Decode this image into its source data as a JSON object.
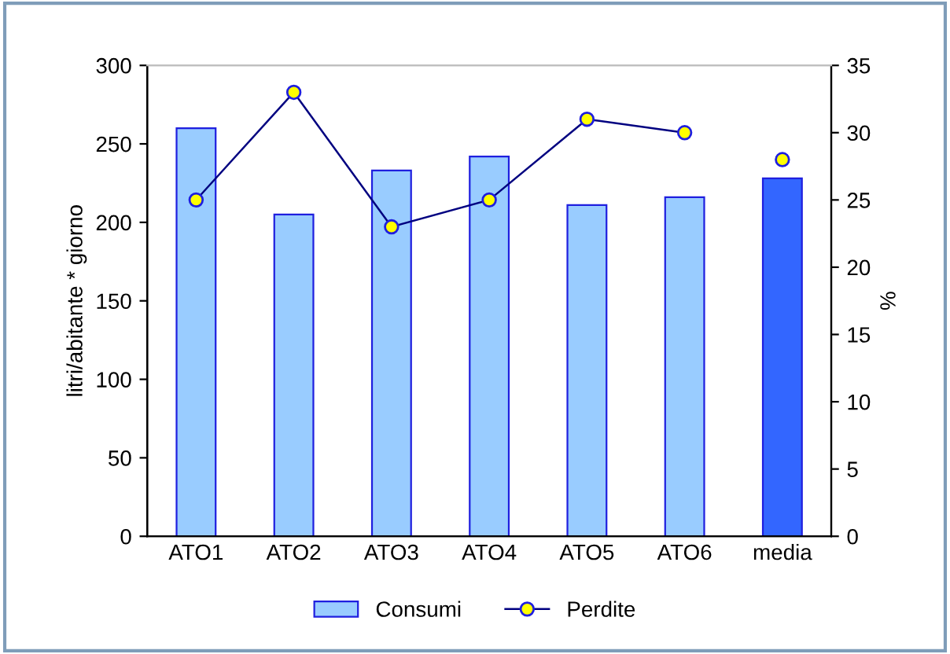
{
  "chart_data": {
    "type": "bar",
    "categories": [
      "ATO1",
      "ATO2",
      "ATO3",
      "ATO4",
      "ATO5",
      "ATO6",
      "media"
    ],
    "ylabel": "litri/abitante * giorno",
    "y2label": "%",
    "series": [
      {
        "name": "Consumi",
        "color": "#99ccff",
        "colors": [
          "#99ccff",
          "#99ccff",
          "#99ccff",
          "#99ccff",
          "#99ccff",
          "#99ccff",
          "#3366ff"
        ],
        "values": [
          260,
          205,
          233,
          242,
          211,
          216,
          228
        ]
      },
      {
        "name": "Perdite",
        "type": "line",
        "axis": "y2",
        "color": "#000080",
        "marker": "circle",
        "values": [
          25,
          33,
          23,
          25,
          31,
          30,
          null
        ]
      },
      {
        "type": "scatter",
        "axis": "y2",
        "color": "#ffff00",
        "marker": "circle",
        "values": [
          null,
          null,
          null,
          null,
          null,
          null,
          28
        ]
      }
    ],
    "ylim": [
      0,
      300
    ],
    "yticks": [
      0,
      50,
      100,
      150,
      200,
      250,
      300
    ],
    "y2lim": [
      0,
      35
    ],
    "y2ticks": [
      0,
      5,
      10,
      15,
      20,
      25,
      30,
      35
    ],
    "grid": false,
    "legend": "bottom"
  }
}
